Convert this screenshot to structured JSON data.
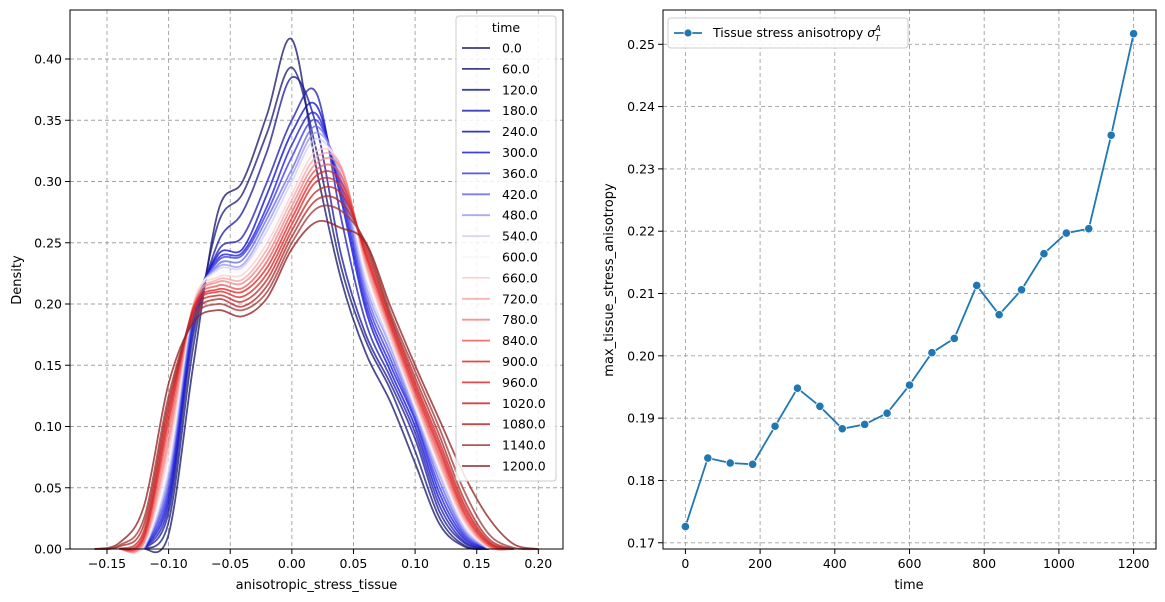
{
  "chart_data": [
    {
      "type": "line",
      "subtype": "kde",
      "xlabel": "anisotropic_stress_tissue",
      "ylabel": "Density",
      "xlim": [
        -0.18,
        0.22
      ],
      "ylim": [
        0,
        0.44
      ],
      "xticks": [
        -0.15,
        -0.1,
        -0.05,
        0.0,
        0.05,
        0.1,
        0.15,
        0.2
      ],
      "xtick_labels": [
        "−0.15",
        "−0.10",
        "−0.05",
        "0.00",
        "0.05",
        "0.10",
        "0.15",
        "0.20"
      ],
      "yticks": [
        0,
        0.05,
        0.1,
        0.15,
        0.2,
        0.25,
        0.3,
        0.35,
        0.4
      ],
      "ytick_labels": [
        "0.00",
        "0.05",
        "0.10",
        "0.15",
        "0.20",
        "0.25",
        "0.30",
        "0.35",
        "0.40"
      ],
      "grid": true,
      "legend_title": "time",
      "legend_position": "top-right",
      "x": [
        -0.16,
        -0.14,
        -0.12,
        -0.1,
        -0.08,
        -0.06,
        -0.04,
        -0.02,
        0.0,
        0.02,
        0.04,
        0.06,
        0.08,
        0.1,
        0.12,
        0.14,
        0.16,
        0.18,
        0.2
      ],
      "series": [
        {
          "name": "0.0",
          "color": "#1a1a6e",
          "values": [
            0,
            0,
            0,
            0.012,
            0.15,
            0.275,
            0.3,
            0.355,
            0.416,
            0.31,
            0.22,
            0.16,
            0.12,
            0.07,
            0.02,
            0.002,
            0,
            0,
            0
          ]
        },
        {
          "name": "60.0",
          "color": "#1f1f78",
          "values": [
            0,
            0,
            0,
            0.022,
            0.165,
            0.265,
            0.29,
            0.34,
            0.393,
            0.325,
            0.23,
            0.17,
            0.13,
            0.08,
            0.025,
            0.003,
            0,
            0,
            0
          ]
        },
        {
          "name": "120.0",
          "color": "#1c1ca0",
          "values": [
            0,
            0,
            0,
            0.03,
            0.175,
            0.25,
            0.275,
            0.325,
            0.385,
            0.345,
            0.24,
            0.175,
            0.135,
            0.09,
            0.03,
            0.005,
            0,
            0,
            0
          ]
        },
        {
          "name": "180.0",
          "color": "#2121b4",
          "values": [
            0,
            0,
            0,
            0.035,
            0.18,
            0.243,
            0.255,
            0.3,
            0.35,
            0.372,
            0.27,
            0.185,
            0.14,
            0.095,
            0.035,
            0.006,
            0,
            0,
            0
          ]
        },
        {
          "name": "240.0",
          "color": "#0f0fd2",
          "values": [
            0,
            0,
            0,
            0.04,
            0.185,
            0.24,
            0.245,
            0.29,
            0.34,
            0.362,
            0.285,
            0.195,
            0.145,
            0.1,
            0.04,
            0.008,
            0,
            0,
            0
          ]
        },
        {
          "name": "300.0",
          "color": "#1f1fdc",
          "values": [
            0,
            0,
            0,
            0.045,
            0.19,
            0.237,
            0.242,
            0.28,
            0.33,
            0.355,
            0.29,
            0.2,
            0.15,
            0.105,
            0.045,
            0.01,
            0,
            0,
            0
          ]
        },
        {
          "name": "360.0",
          "color": "#3a3aee",
          "values": [
            0,
            0,
            0,
            0.05,
            0.19,
            0.235,
            0.24,
            0.275,
            0.32,
            0.35,
            0.295,
            0.205,
            0.155,
            0.107,
            0.05,
            0.012,
            0,
            0,
            0
          ]
        },
        {
          "name": "420.0",
          "color": "#6a6ae6",
          "values": [
            0,
            0,
            0,
            0.055,
            0.192,
            0.232,
            0.236,
            0.27,
            0.31,
            0.345,
            0.3,
            0.21,
            0.16,
            0.11,
            0.055,
            0.014,
            0,
            0,
            0
          ]
        },
        {
          "name": "480.0",
          "color": "#9a9af4",
          "values": [
            0,
            0,
            0,
            0.06,
            0.195,
            0.23,
            0.232,
            0.265,
            0.305,
            0.34,
            0.305,
            0.215,
            0.165,
            0.112,
            0.06,
            0.016,
            0,
            0,
            0
          ]
        },
        {
          "name": "540.0",
          "color": "#cfcffa",
          "values": [
            0,
            0,
            0.002,
            0.065,
            0.197,
            0.228,
            0.23,
            0.26,
            0.3,
            0.335,
            0.305,
            0.22,
            0.168,
            0.115,
            0.062,
            0.018,
            0,
            0,
            0
          ]
        },
        {
          "name": "600.0",
          "color": "#fbf5f5",
          "values": [
            0,
            0,
            0.003,
            0.07,
            0.2,
            0.225,
            0.228,
            0.255,
            0.295,
            0.33,
            0.31,
            0.225,
            0.17,
            0.117,
            0.065,
            0.02,
            0,
            0,
            0
          ]
        },
        {
          "name": "660.0",
          "color": "#f9d0d0",
          "values": [
            0,
            0,
            0.004,
            0.078,
            0.2,
            0.222,
            0.224,
            0.25,
            0.29,
            0.325,
            0.312,
            0.23,
            0.172,
            0.12,
            0.068,
            0.022,
            0.001,
            0,
            0
          ]
        },
        {
          "name": "720.0",
          "color": "#f6a6a6",
          "values": [
            0,
            0,
            0.005,
            0.085,
            0.198,
            0.22,
            0.22,
            0.245,
            0.285,
            0.32,
            0.312,
            0.232,
            0.175,
            0.122,
            0.07,
            0.024,
            0.002,
            0,
            0
          ]
        },
        {
          "name": "780.0",
          "color": "#f28484",
          "values": [
            0,
            0,
            0.006,
            0.09,
            0.198,
            0.218,
            0.217,
            0.24,
            0.28,
            0.315,
            0.31,
            0.235,
            0.178,
            0.125,
            0.073,
            0.026,
            0.002,
            0,
            0
          ]
        },
        {
          "name": "840.0",
          "color": "#ec5a5a",
          "values": [
            0,
            0,
            0.008,
            0.098,
            0.197,
            0.215,
            0.213,
            0.235,
            0.275,
            0.31,
            0.305,
            0.238,
            0.18,
            0.127,
            0.076,
            0.028,
            0.003,
            0,
            0
          ]
        },
        {
          "name": "900.0",
          "color": "#e62424",
          "values": [
            0,
            0,
            0.01,
            0.105,
            0.196,
            0.212,
            0.21,
            0.23,
            0.27,
            0.305,
            0.3,
            0.24,
            0.183,
            0.13,
            0.08,
            0.03,
            0.004,
            0,
            0
          ]
        },
        {
          "name": "960.0",
          "color": "#dc2a2a",
          "values": [
            0,
            0,
            0.012,
            0.11,
            0.195,
            0.21,
            0.206,
            0.225,
            0.265,
            0.3,
            0.295,
            0.242,
            0.185,
            0.133,
            0.083,
            0.033,
            0.005,
            0,
            0
          ]
        },
        {
          "name": "1020.0",
          "color": "#c82828",
          "values": [
            0,
            0,
            0.015,
            0.115,
            0.193,
            0.207,
            0.202,
            0.22,
            0.26,
            0.292,
            0.29,
            0.245,
            0.188,
            0.136,
            0.087,
            0.036,
            0.006,
            0,
            0
          ]
        },
        {
          "name": "1080.0",
          "color": "#b42c2c",
          "values": [
            0,
            0.002,
            0.02,
            0.12,
            0.19,
            0.204,
            0.198,
            0.215,
            0.255,
            0.285,
            0.283,
            0.248,
            0.19,
            0.14,
            0.092,
            0.04,
            0.008,
            0,
            0
          ]
        },
        {
          "name": "1140.0",
          "color": "#a33a3a",
          "values": [
            0,
            0.003,
            0.025,
            0.125,
            0.188,
            0.2,
            0.195,
            0.21,
            0.25,
            0.278,
            0.276,
            0.25,
            0.193,
            0.145,
            0.098,
            0.047,
            0.012,
            0.001,
            0
          ]
        },
        {
          "name": "1200.0",
          "color": "#942222",
          "values": [
            0,
            0.005,
            0.035,
            0.135,
            0.185,
            0.195,
            0.19,
            0.205,
            0.245,
            0.267,
            0.262,
            0.25,
            0.198,
            0.15,
            0.105,
            0.06,
            0.025,
            0.004,
            0
          ]
        }
      ]
    },
    {
      "type": "line",
      "xlabel": "time",
      "ylabel": "max_tissue_stress_anisotropy",
      "xlim": [
        -60,
        1260
      ],
      "ylim": [
        0.169,
        0.2555
      ],
      "xticks": [
        0,
        200,
        400,
        600,
        800,
        1000,
        1200
      ],
      "xtick_labels": [
        "0",
        "200",
        "400",
        "600",
        "800",
        "1000",
        "1200"
      ],
      "yticks": [
        0.17,
        0.18,
        0.19,
        0.2,
        0.21,
        0.22,
        0.23,
        0.24,
        0.25
      ],
      "ytick_labels": [
        "0.17",
        "0.18",
        "0.19",
        "0.20",
        "0.21",
        "0.22",
        "0.23",
        "0.24",
        "0.25"
      ],
      "grid": true,
      "legend_position": "top-left",
      "color": "#1f77b4",
      "series": [
        {
          "name": "Tissue stress anisotropy σ_T^A",
          "x": [
            0,
            60,
            120,
            180,
            240,
            300,
            360,
            420,
            480,
            540,
            600,
            660,
            720,
            780,
            840,
            900,
            960,
            1020,
            1080,
            1140,
            1200
          ],
          "values": [
            0.1726,
            0.1836,
            0.1828,
            0.1826,
            0.1887,
            0.1948,
            0.1919,
            0.1883,
            0.189,
            0.1908,
            0.1953,
            0.2005,
            0.2028,
            0.2113,
            0.2066,
            0.2106,
            0.2164,
            0.2197,
            0.2204,
            0.2354,
            0.2517
          ]
        }
      ]
    }
  ],
  "right_legend": {
    "label_main": "Tissue stress anisotropy ",
    "sym": "σ",
    "sup": "A",
    "sub": "T"
  }
}
